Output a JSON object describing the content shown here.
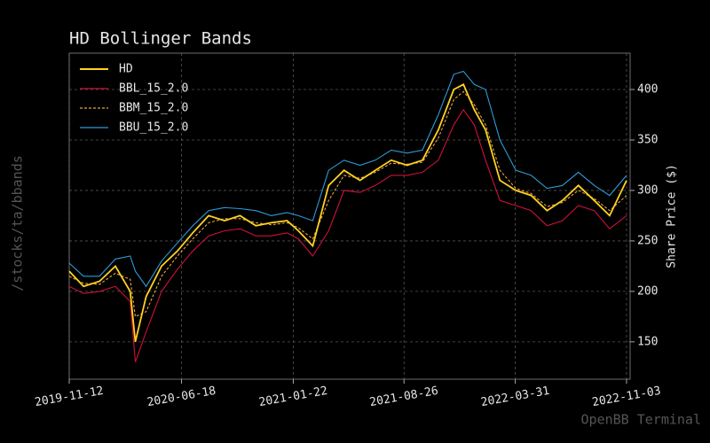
{
  "chart_data": {
    "type": "line",
    "title": "HD Bollinger Bands",
    "y_label": "Share Price ($)",
    "side_label": "/stocks/ta/bbands",
    "watermark": "OpenBB Terminal",
    "x": [
      "2019-11-12",
      "2019-12-10",
      "2020-01-10",
      "2020-02-10",
      "2020-03-10",
      "2020-03-20",
      "2020-04-10",
      "2020-05-10",
      "2020-06-10",
      "2020-07-10",
      "2020-08-10",
      "2020-09-10",
      "2020-10-10",
      "2020-11-10",
      "2020-12-10",
      "2021-01-10",
      "2021-02-01",
      "2021-03-01",
      "2021-04-01",
      "2021-05-01",
      "2021-06-01",
      "2021-07-01",
      "2021-08-01",
      "2021-09-01",
      "2021-10-01",
      "2021-11-01",
      "2021-12-01",
      "2021-12-20",
      "2022-01-10",
      "2022-02-01",
      "2022-03-01",
      "2022-04-01",
      "2022-05-01",
      "2022-06-01",
      "2022-07-01",
      "2022-08-01",
      "2022-09-01",
      "2022-10-01",
      "2022-11-03"
    ],
    "series": [
      {
        "name": "HD",
        "color": "#ffd21f",
        "line_style": "solid",
        "values": [
          220,
          205,
          210,
          225,
          200,
          150,
          195,
          225,
          240,
          258,
          275,
          270,
          275,
          265,
          268,
          270,
          260,
          245,
          305,
          320,
          310,
          320,
          330,
          325,
          330,
          360,
          400,
          405,
          380,
          360,
          310,
          300,
          295,
          280,
          290,
          305,
          290,
          275,
          310
        ]
      },
      {
        "name": "BBL_15_2.0",
        "color": "#d0103a",
        "line_style": "solid",
        "values": [
          205,
          198,
          200,
          205,
          190,
          130,
          160,
          200,
          222,
          240,
          255,
          260,
          262,
          255,
          255,
          258,
          252,
          235,
          260,
          300,
          298,
          305,
          315,
          315,
          318,
          330,
          365,
          380,
          365,
          330,
          290,
          285,
          280,
          265,
          270,
          285,
          280,
          262,
          275
        ]
      },
      {
        "name": "BBM_15_2.0",
        "color": "#e8a33d",
        "line_style": "dashed",
        "values": [
          215,
          208,
          207,
          218,
          212,
          175,
          180,
          215,
          235,
          252,
          268,
          272,
          272,
          268,
          266,
          268,
          263,
          252,
          290,
          315,
          312,
          318,
          327,
          326,
          328,
          352,
          390,
          398,
          385,
          365,
          320,
          302,
          297,
          284,
          288,
          300,
          292,
          280,
          295
        ]
      },
      {
        "name": "BBU_15_2.0",
        "color": "#2e9bd6",
        "line_style": "solid",
        "values": [
          228,
          215,
          215,
          232,
          235,
          220,
          205,
          230,
          248,
          265,
          280,
          283,
          282,
          280,
          275,
          278,
          275,
          270,
          320,
          330,
          325,
          330,
          340,
          337,
          340,
          375,
          415,
          418,
          405,
          400,
          350,
          320,
          315,
          302,
          305,
          318,
          305,
          295,
          315
        ]
      }
    ],
    "xlim": [
      "2019-11-12",
      "2022-11-10"
    ],
    "xticks": [
      "2019-11-12",
      "2020-06-18",
      "2021-01-22",
      "2021-08-26",
      "2022-03-31",
      "2022-11-03"
    ],
    "ylim": [
      113,
      436
    ],
    "yticks": [
      150,
      200,
      250,
      300,
      350,
      400
    ],
    "grid": true,
    "legend": "upper left"
  }
}
